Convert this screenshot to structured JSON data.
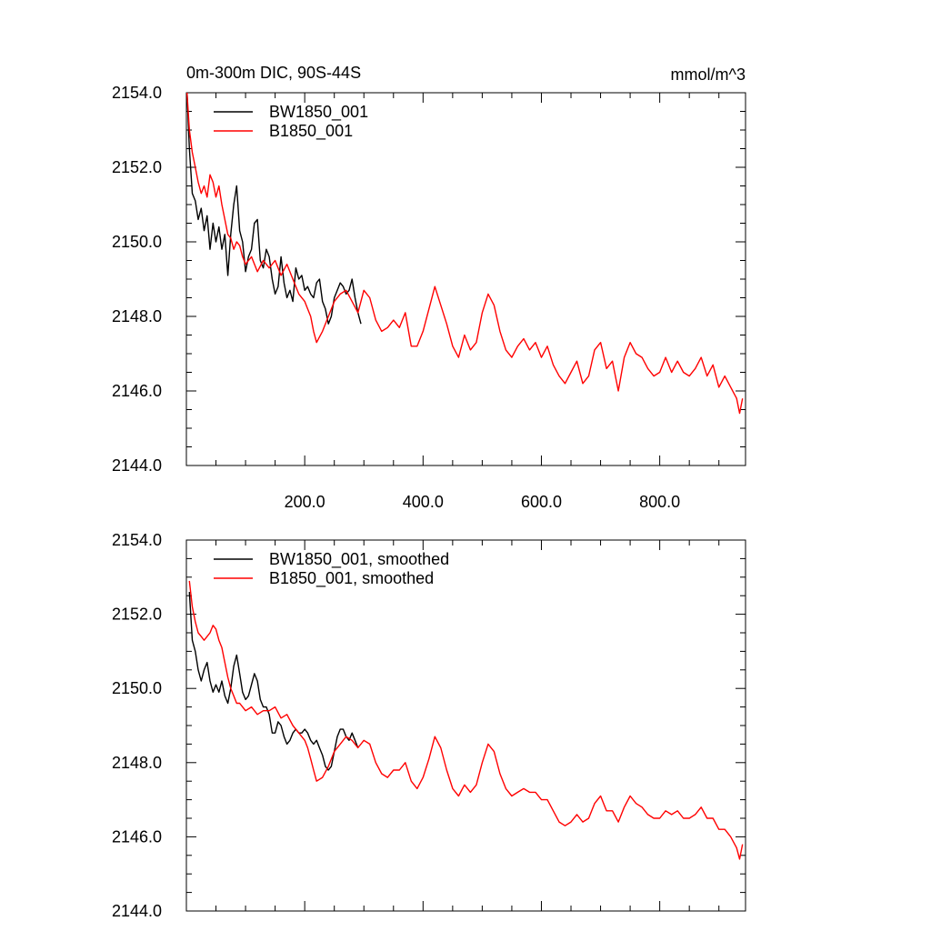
{
  "chart_data": [
    {
      "type": "line",
      "title": "0m-300m DIC, 90S-44S",
      "units": "mmol/m^3",
      "xlim": [
        0,
        945
      ],
      "ylim": [
        2144,
        2154
      ],
      "x_ticks": [
        200,
        400,
        600,
        800
      ],
      "x_tick_labels": [
        "200.0",
        "400.0",
        "600.0",
        "800.0"
      ],
      "y_ticks": [
        2144,
        2146,
        2148,
        2150,
        2152,
        2154
      ],
      "y_tick_labels": [
        "2144.0",
        "2146.0",
        "2148.0",
        "2150.0",
        "2152.0",
        "2154.0"
      ],
      "grid": false,
      "legend_position": "top-left",
      "series": [
        {
          "name": "BW1850_001",
          "color": "#000000",
          "x": [
            1,
            5,
            10,
            15,
            20,
            25,
            30,
            35,
            40,
            45,
            50,
            55,
            60,
            65,
            70,
            75,
            80,
            85,
            90,
            95,
            100,
            105,
            110,
            115,
            120,
            125,
            130,
            135,
            140,
            145,
            150,
            155,
            160,
            165,
            170,
            175,
            180,
            185,
            190,
            195,
            200,
            205,
            210,
            215,
            220,
            225,
            230,
            235,
            240,
            245,
            250,
            255,
            260,
            265,
            270,
            275,
            280,
            285,
            290,
            295
          ],
          "values": [
            2154.0,
            2152.5,
            2151.3,
            2151.1,
            2150.6,
            2150.9,
            2150.3,
            2150.7,
            2149.8,
            2150.5,
            2150.0,
            2150.4,
            2149.8,
            2150.2,
            2149.1,
            2150.2,
            2151.0,
            2151.5,
            2150.3,
            2150.0,
            2149.2,
            2149.6,
            2149.8,
            2150.5,
            2150.6,
            2149.5,
            2149.3,
            2149.8,
            2149.6,
            2149.0,
            2148.6,
            2148.8,
            2149.6,
            2148.9,
            2148.5,
            2148.7,
            2148.4,
            2149.3,
            2149.0,
            2149.1,
            2148.7,
            2148.8,
            2148.6,
            2148.5,
            2148.9,
            2149.0,
            2148.4,
            2148.2,
            2147.8,
            2148.0,
            2148.5,
            2148.7,
            2148.9,
            2148.8,
            2148.6,
            2148.7,
            2149.0,
            2148.5,
            2148.1,
            2147.8
          ]
        },
        {
          "name": "B1850_001",
          "color": "#ff0000",
          "x": [
            1,
            5,
            10,
            15,
            20,
            25,
            30,
            35,
            40,
            45,
            50,
            55,
            60,
            65,
            70,
            75,
            80,
            85,
            90,
            95,
            100,
            110,
            120,
            130,
            140,
            150,
            160,
            170,
            180,
            190,
            200,
            205,
            210,
            215,
            220,
            230,
            240,
            250,
            260,
            270,
            280,
            290,
            300,
            310,
            320,
            330,
            340,
            350,
            360,
            370,
            380,
            390,
            400,
            410,
            420,
            430,
            440,
            450,
            460,
            470,
            480,
            490,
            500,
            510,
            520,
            530,
            540,
            550,
            560,
            570,
            580,
            590,
            600,
            610,
            620,
            630,
            640,
            650,
            660,
            670,
            680,
            690,
            700,
            710,
            720,
            730,
            740,
            750,
            760,
            770,
            780,
            790,
            800,
            810,
            820,
            830,
            840,
            850,
            860,
            870,
            880,
            890,
            900,
            910,
            920,
            930,
            935,
            940
          ],
          "values": [
            2154.0,
            2153.0,
            2152.4,
            2152.0,
            2151.6,
            2151.3,
            2151.5,
            2151.2,
            2151.8,
            2151.6,
            2151.2,
            2151.5,
            2151.0,
            2150.6,
            2150.2,
            2150.1,
            2149.8,
            2150.0,
            2149.9,
            2149.6,
            2149.4,
            2149.6,
            2149.2,
            2149.5,
            2149.3,
            2149.5,
            2149.1,
            2149.4,
            2149.0,
            2148.6,
            2148.4,
            2148.2,
            2148.0,
            2147.6,
            2147.3,
            2147.6,
            2148.0,
            2148.4,
            2148.6,
            2148.7,
            2148.4,
            2148.1,
            2148.7,
            2148.5,
            2147.9,
            2147.6,
            2147.7,
            2147.9,
            2147.7,
            2148.1,
            2147.2,
            2147.2,
            2147.6,
            2148.2,
            2148.8,
            2148.3,
            2147.8,
            2147.2,
            2146.9,
            2147.5,
            2147.1,
            2147.3,
            2148.1,
            2148.6,
            2148.3,
            2147.6,
            2147.1,
            2146.9,
            2147.2,
            2147.4,
            2147.1,
            2147.3,
            2146.9,
            2147.2,
            2146.7,
            2146.4,
            2146.2,
            2146.5,
            2146.8,
            2146.2,
            2146.4,
            2147.1,
            2147.3,
            2146.6,
            2146.8,
            2146.0,
            2146.9,
            2147.3,
            2147.0,
            2146.9,
            2146.6,
            2146.4,
            2146.5,
            2146.9,
            2146.5,
            2146.8,
            2146.5,
            2146.4,
            2146.6,
            2146.9,
            2146.4,
            2146.7,
            2146.1,
            2146.4,
            2146.1,
            2145.8,
            2145.4,
            2145.8
          ]
        }
      ]
    },
    {
      "type": "line",
      "xlim": [
        0,
        945
      ],
      "ylim": [
        2144,
        2154
      ],
      "x_ticks": [
        200,
        400,
        600,
        800
      ],
      "y_ticks": [
        2144,
        2146,
        2148,
        2150,
        2152,
        2154
      ],
      "y_tick_labels": [
        "2144.0",
        "2146.0",
        "2148.0",
        "2150.0",
        "2152.0",
        "2154.0"
      ],
      "grid": false,
      "legend_position": "top-left",
      "series": [
        {
          "name": "BW1850_001, smoothed",
          "color": "#000000",
          "x": [
            5,
            10,
            15,
            20,
            25,
            30,
            35,
            40,
            45,
            50,
            55,
            60,
            65,
            70,
            75,
            80,
            85,
            90,
            95,
            100,
            105,
            110,
            115,
            120,
            125,
            130,
            135,
            140,
            145,
            150,
            155,
            160,
            165,
            170,
            175,
            180,
            185,
            190,
            195,
            200,
            205,
            210,
            215,
            220,
            225,
            230,
            235,
            240,
            245,
            250,
            255,
            260,
            265,
            270,
            275,
            280,
            285,
            290
          ],
          "values": [
            2152.6,
            2151.3,
            2151.0,
            2150.5,
            2150.2,
            2150.5,
            2150.7,
            2150.2,
            2149.9,
            2150.1,
            2149.9,
            2150.2,
            2149.8,
            2149.6,
            2150.0,
            2150.6,
            2150.9,
            2150.4,
            2149.9,
            2149.7,
            2149.8,
            2150.1,
            2150.4,
            2150.2,
            2149.7,
            2149.5,
            2149.5,
            2149.3,
            2148.8,
            2148.8,
            2149.1,
            2149.0,
            2148.7,
            2148.5,
            2148.6,
            2148.8,
            2148.9,
            2148.8,
            2148.8,
            2148.9,
            2148.8,
            2148.6,
            2148.5,
            2148.6,
            2148.4,
            2148.2,
            2147.9,
            2147.8,
            2147.9,
            2148.3,
            2148.7,
            2148.9,
            2148.9,
            2148.7,
            2148.6,
            2148.8,
            2148.6,
            2148.4
          ]
        },
        {
          "name": "B1850_001, smoothed",
          "color": "#ff0000",
          "x": [
            5,
            10,
            15,
            20,
            25,
            30,
            35,
            40,
            45,
            50,
            55,
            60,
            65,
            70,
            75,
            80,
            85,
            90,
            95,
            100,
            110,
            120,
            130,
            140,
            150,
            160,
            170,
            180,
            190,
            200,
            205,
            210,
            215,
            220,
            230,
            240,
            250,
            260,
            270,
            280,
            290,
            300,
            310,
            320,
            330,
            340,
            350,
            360,
            370,
            380,
            390,
            400,
            410,
            420,
            430,
            440,
            450,
            460,
            470,
            480,
            490,
            500,
            510,
            520,
            530,
            540,
            550,
            560,
            570,
            580,
            590,
            600,
            610,
            620,
            630,
            640,
            650,
            660,
            670,
            680,
            690,
            700,
            710,
            720,
            730,
            740,
            750,
            760,
            770,
            780,
            790,
            800,
            810,
            820,
            830,
            840,
            850,
            860,
            870,
            880,
            890,
            900,
            910,
            920,
            930,
            935,
            940
          ],
          "values": [
            2152.9,
            2152.2,
            2151.8,
            2151.5,
            2151.4,
            2151.3,
            2151.4,
            2151.5,
            2151.7,
            2151.6,
            2151.3,
            2151.1,
            2150.7,
            2150.3,
            2150.0,
            2149.8,
            2149.6,
            2149.6,
            2149.5,
            2149.4,
            2149.5,
            2149.3,
            2149.4,
            2149.4,
            2149.5,
            2149.2,
            2149.3,
            2149.0,
            2148.8,
            2148.6,
            2148.4,
            2148.1,
            2147.8,
            2147.5,
            2147.6,
            2147.9,
            2148.3,
            2148.5,
            2148.7,
            2148.6,
            2148.4,
            2148.6,
            2148.5,
            2148.0,
            2147.7,
            2147.6,
            2147.8,
            2147.8,
            2148.0,
            2147.5,
            2147.3,
            2147.6,
            2148.1,
            2148.7,
            2148.4,
            2147.8,
            2147.3,
            2147.1,
            2147.4,
            2147.2,
            2147.4,
            2148.0,
            2148.5,
            2148.3,
            2147.7,
            2147.3,
            2147.1,
            2147.2,
            2147.3,
            2147.2,
            2147.2,
            2147.0,
            2147.0,
            2146.7,
            2146.4,
            2146.3,
            2146.4,
            2146.6,
            2146.4,
            2146.5,
            2146.9,
            2147.1,
            2146.7,
            2146.7,
            2146.4,
            2146.8,
            2147.1,
            2146.9,
            2146.8,
            2146.6,
            2146.5,
            2146.5,
            2146.7,
            2146.6,
            2146.7,
            2146.5,
            2146.5,
            2146.6,
            2146.8,
            2146.5,
            2146.5,
            2146.2,
            2146.2,
            2146.0,
            2145.7,
            2145.4,
            2145.8
          ]
        }
      ]
    }
  ]
}
